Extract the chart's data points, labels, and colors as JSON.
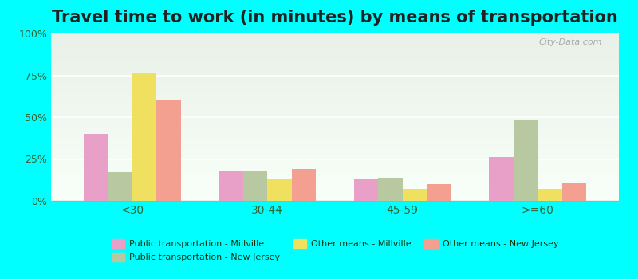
{
  "title": "Travel time to work (in minutes) by means of transportation",
  "categories": [
    "<30",
    "30-44",
    "45-59",
    ">=60"
  ],
  "series": {
    "Public transportation - Millville": [
      40,
      18,
      13,
      26
    ],
    "Public transportation - New Jersey": [
      17,
      18,
      14,
      48
    ],
    "Other means - Millville": [
      76,
      13,
      7,
      7
    ],
    "Other means - New Jersey": [
      60,
      19,
      10,
      11
    ]
  },
  "colors": {
    "Public transportation - Millville": "#e8a0c8",
    "Public transportation - New Jersey": "#b8c8a0",
    "Other means - Millville": "#f0e060",
    "Other means - New Jersey": "#f4a090"
  },
  "ylim": [
    0,
    100
  ],
  "yticks": [
    0,
    25,
    50,
    75,
    100
  ],
  "ytick_labels": [
    "0%",
    "25%",
    "50%",
    "75%",
    "100%"
  ],
  "background_color_top": "#e8f0e8",
  "background_color_bottom": "#f8fff8",
  "outer_background": "#00ffff",
  "title_fontsize": 15,
  "bar_width": 0.18
}
